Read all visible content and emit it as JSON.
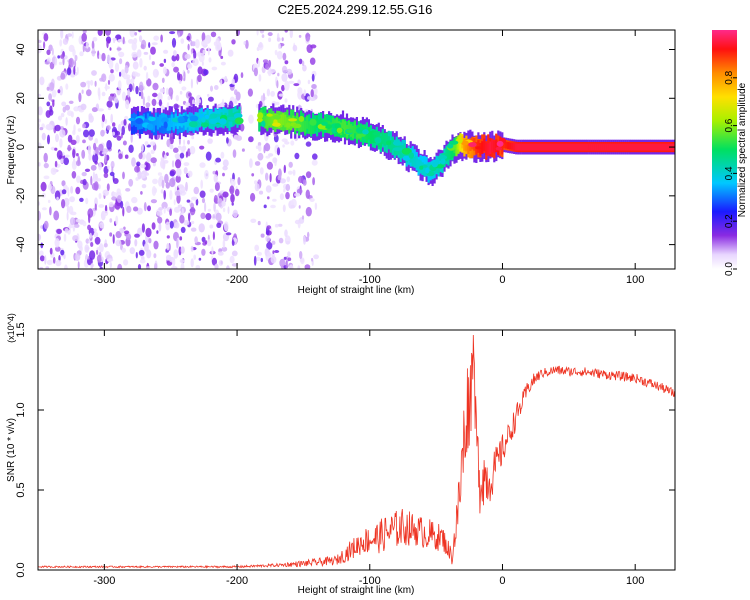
{
  "title": "C2E5.2024.299.12.55.G16",
  "colors": {
    "snr_line": "#ee3322",
    "frame": "#000000",
    "background": "#ffffff"
  },
  "chart_data": [
    {
      "type": "heatmap",
      "title": "C2E5.2024.299.12.55.G16",
      "xlabel": "Height of straight line (km)",
      "ylabel": "Frequency (Hz)",
      "xlim": [
        -350,
        130
      ],
      "ylim": [
        -50,
        48
      ],
      "x_ticks": [
        -300,
        -200,
        -100,
        0,
        100
      ],
      "y_ticks": [
        -40,
        -20,
        0,
        20,
        40
      ],
      "colorbar": {
        "label": "Normalized spectral amplitude",
        "range": [
          0,
          1
        ],
        "ticks": [
          0.0,
          0.2,
          0.4,
          0.6,
          0.8
        ],
        "colormap": "rainbow (white-purple-blue-cyan-green-yellow-orange-red-magenta)"
      },
      "ridge": {
        "description": "dominant frequency ridge",
        "x": [
          -280,
          -250,
          -200,
          -170,
          -140,
          -120,
          -100,
          -80,
          -65,
          -55,
          -45,
          -38,
          -30,
          -20,
          -10,
          0,
          10,
          50,
          100,
          130
        ],
        "frequency": [
          10,
          10,
          12,
          11,
          9,
          8,
          5,
          0,
          -6,
          -10,
          -6,
          0,
          1,
          0,
          0,
          1,
          0,
          0,
          0,
          0
        ],
        "amplitude": [
          0.3,
          0.35,
          0.45,
          0.6,
          0.5,
          0.55,
          0.5,
          0.45,
          0.4,
          0.4,
          0.45,
          0.5,
          0.8,
          0.9,
          0.95,
          0.9,
          0.95,
          0.95,
          0.95,
          0.95
        ]
      },
      "noise_region": {
        "x_range": [
          -350,
          -140
        ],
        "description": "scattered broadband noise over all frequencies"
      }
    },
    {
      "type": "line",
      "xlabel": "Height of straight line (km)",
      "ylabel": "SNR (10 * v/v)",
      "y_multiplier": "(x10^4)",
      "xlim": [
        -350,
        130
      ],
      "ylim": [
        0,
        1.5
      ],
      "x_ticks": [
        -300,
        -200,
        -100,
        0,
        100
      ],
      "y_ticks": [
        0.0,
        0.5,
        1.0,
        1.5
      ],
      "series": [
        {
          "x": [
            -350,
            -300,
            -250,
            -200,
            -170,
            -150,
            -125,
            -115,
            -105,
            -95,
            -85,
            -75,
            -65,
            -55,
            -45,
            -38,
            -33,
            -30,
            -27,
            -24,
            -22,
            -20,
            -17,
            -14,
            -10,
            -5,
            0,
            5,
            10,
            15,
            20,
            25,
            30,
            40,
            50,
            60,
            70,
            80,
            90,
            100,
            110,
            120,
            130
          ],
          "y": [
            0.02,
            0.02,
            0.02,
            0.02,
            0.03,
            0.04,
            0.06,
            0.12,
            0.18,
            0.2,
            0.24,
            0.27,
            0.25,
            0.22,
            0.2,
            0.08,
            0.4,
            0.7,
            1.0,
            1.1,
            1.4,
            0.9,
            0.55,
            0.6,
            0.55,
            0.65,
            0.75,
            0.85,
            0.95,
            1.05,
            1.15,
            1.2,
            1.23,
            1.25,
            1.24,
            1.24,
            1.23,
            1.22,
            1.21,
            1.2,
            1.17,
            1.14,
            1.1
          ],
          "noise_amplitude": [
            0.005,
            0.005,
            0.005,
            0.006,
            0.01,
            0.02,
            0.03,
            0.06,
            0.08,
            0.1,
            0.12,
            0.12,
            0.1,
            0.1,
            0.08,
            0.05,
            0.2,
            0.3,
            0.3,
            0.3,
            0.12,
            0.2,
            0.2,
            0.2,
            0.15,
            0.12,
            0.1,
            0.08,
            0.08,
            0.06,
            0.05,
            0.04,
            0.03,
            0.03,
            0.03,
            0.03,
            0.03,
            0.03,
            0.03,
            0.03,
            0.03,
            0.03,
            0.03
          ]
        }
      ]
    }
  ]
}
